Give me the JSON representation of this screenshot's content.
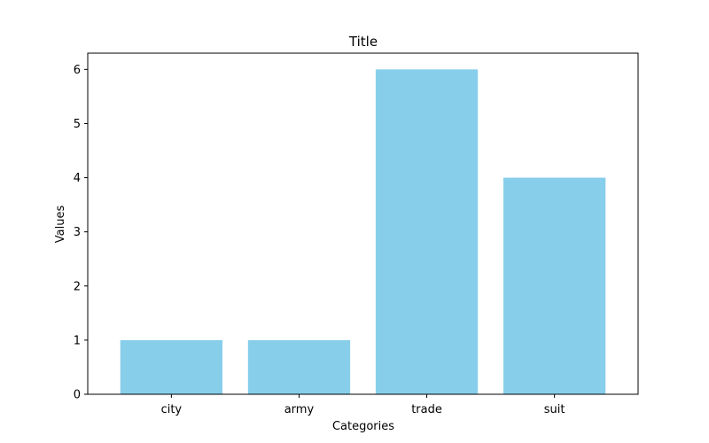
{
  "chart_data": {
    "type": "bar",
    "title": "Title",
    "xlabel": "Categories",
    "ylabel": "Values",
    "categories": [
      "city",
      "army",
      "trade",
      "suit"
    ],
    "values": [
      1,
      1,
      6,
      4
    ],
    "ylim": [
      0,
      6.3
    ],
    "yticks": [
      0,
      1,
      2,
      3,
      4,
      5,
      6
    ],
    "bar_color": "#87CEEB",
    "grid": false,
    "legend": "none"
  }
}
